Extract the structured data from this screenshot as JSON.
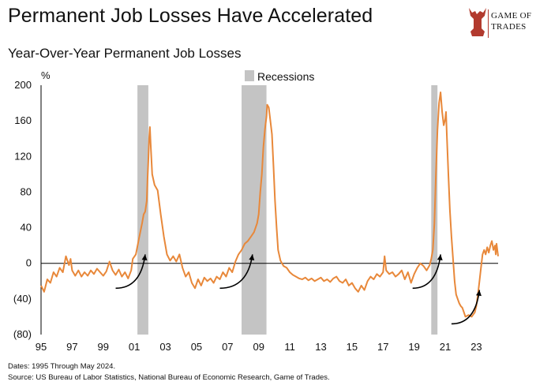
{
  "title": "Permanent Job Losses Have Accelerated",
  "subtitle": "Year-Over-Year Permanent Job Losses",
  "logo": {
    "line1": "GAME OF",
    "line2": "TRADES",
    "icon": "bull-icon"
  },
  "footer": {
    "dates": "Dates: 1995 Through May 2024.",
    "source": "Source: US Bureau of Labor Statistics, National Bureau of Economic Research, Game of Trades."
  },
  "colors": {
    "line": "#E8883A",
    "recession": "#C4C4C4",
    "zero_line": "#000000",
    "arrow": "#000000"
  },
  "chart_data": {
    "type": "line",
    "title": "Permanent Job Losses Have Accelerated",
    "subtitle": "Year-Over-Year Permanent Job Losses",
    "ylabel": "%",
    "ylim": [
      -80,
      200
    ],
    "xlim": [
      1995,
      2024.4
    ],
    "y_ticks": [
      -80,
      -40,
      0,
      40,
      80,
      120,
      160,
      200
    ],
    "y_tick_labels": [
      "(80)",
      "(40)",
      "0",
      "40",
      "80",
      "120",
      "160",
      "200"
    ],
    "x_ticks": [
      1995,
      1997,
      1999,
      2001,
      2003,
      2005,
      2007,
      2009,
      2011,
      2013,
      2015,
      2017,
      2019,
      2021,
      2023
    ],
    "x_tick_labels": [
      "95",
      "97",
      "99",
      "01",
      "03",
      "05",
      "07",
      "09",
      "11",
      "13",
      "15",
      "17",
      "19",
      "21",
      "23"
    ],
    "legend": {
      "label": "Recessions",
      "placement": "top-center"
    },
    "recessions": [
      {
        "start": 2001.2,
        "end": 2001.9
      },
      {
        "start": 2007.9,
        "end": 2009.5
      },
      {
        "start": 2020.1,
        "end": 2020.5
      }
    ],
    "series": [
      {
        "values": [
          [
            1995.0,
            -25
          ],
          [
            1995.2,
            -32
          ],
          [
            1995.4,
            -18
          ],
          [
            1995.6,
            -22
          ],
          [
            1995.8,
            -10
          ],
          [
            1996.0,
            -15
          ],
          [
            1996.2,
            -5
          ],
          [
            1996.4,
            -10
          ],
          [
            1996.6,
            8
          ],
          [
            1996.8,
            -2
          ],
          [
            1996.9,
            5
          ],
          [
            1997.0,
            -8
          ],
          [
            1997.2,
            -14
          ],
          [
            1997.4,
            -8
          ],
          [
            1997.6,
            -15
          ],
          [
            1997.8,
            -10
          ],
          [
            1998.0,
            -14
          ],
          [
            1998.2,
            -8
          ],
          [
            1998.4,
            -12
          ],
          [
            1998.6,
            -6
          ],
          [
            1998.8,
            -10
          ],
          [
            1999.0,
            -14
          ],
          [
            1999.2,
            -9
          ],
          [
            1999.4,
            2
          ],
          [
            1999.6,
            -8
          ],
          [
            1999.8,
            -13
          ],
          [
            2000.0,
            -7
          ],
          [
            2000.2,
            -15
          ],
          [
            2000.4,
            -10
          ],
          [
            2000.6,
            -17
          ],
          [
            2000.8,
            -8
          ],
          [
            2000.9,
            5
          ],
          [
            2001.1,
            10
          ],
          [
            2001.3,
            28
          ],
          [
            2001.5,
            45
          ],
          [
            2001.6,
            55
          ],
          [
            2001.7,
            58
          ],
          [
            2001.8,
            70
          ],
          [
            2001.85,
            95
          ],
          [
            2001.9,
            115
          ],
          [
            2001.95,
            140
          ],
          [
            2002.0,
            153
          ],
          [
            2002.05,
            135
          ],
          [
            2002.15,
            100
          ],
          [
            2002.3,
            88
          ],
          [
            2002.5,
            82
          ],
          [
            2002.7,
            55
          ],
          [
            2002.9,
            30
          ],
          [
            2003.1,
            10
          ],
          [
            2003.3,
            3
          ],
          [
            2003.5,
            8
          ],
          [
            2003.7,
            2
          ],
          [
            2003.9,
            10
          ],
          [
            2004.1,
            -5
          ],
          [
            2004.3,
            -15
          ],
          [
            2004.5,
            -10
          ],
          [
            2004.7,
            -22
          ],
          [
            2004.9,
            -28
          ],
          [
            2005.1,
            -18
          ],
          [
            2005.3,
            -25
          ],
          [
            2005.5,
            -16
          ],
          [
            2005.7,
            -20
          ],
          [
            2005.9,
            -17
          ],
          [
            2006.1,
            -22
          ],
          [
            2006.3,
            -15
          ],
          [
            2006.5,
            -18
          ],
          [
            2006.7,
            -10
          ],
          [
            2006.9,
            -15
          ],
          [
            2007.1,
            -5
          ],
          [
            2007.3,
            -10
          ],
          [
            2007.5,
            2
          ],
          [
            2007.7,
            10
          ],
          [
            2007.9,
            15
          ],
          [
            2008.1,
            22
          ],
          [
            2008.3,
            25
          ],
          [
            2008.5,
            30
          ],
          [
            2008.7,
            35
          ],
          [
            2008.9,
            45
          ],
          [
            2009.0,
            55
          ],
          [
            2009.1,
            80
          ],
          [
            2009.2,
            100
          ],
          [
            2009.3,
            130
          ],
          [
            2009.4,
            150
          ],
          [
            2009.5,
            165
          ],
          [
            2009.55,
            178
          ],
          [
            2009.65,
            175
          ],
          [
            2009.75,
            160
          ],
          [
            2009.85,
            145
          ],
          [
            2009.95,
            110
          ],
          [
            2010.05,
            70
          ],
          [
            2010.15,
            40
          ],
          [
            2010.25,
            15
          ],
          [
            2010.4,
            3
          ],
          [
            2010.6,
            -3
          ],
          [
            2010.8,
            -5
          ],
          [
            2011.0,
            -10
          ],
          [
            2011.2,
            -13
          ],
          [
            2011.4,
            -15
          ],
          [
            2011.6,
            -17
          ],
          [
            2011.8,
            -18
          ],
          [
            2012.0,
            -16
          ],
          [
            2012.2,
            -19
          ],
          [
            2012.4,
            -17
          ],
          [
            2012.6,
            -20
          ],
          [
            2012.8,
            -18
          ],
          [
            2013.0,
            -16
          ],
          [
            2013.2,
            -20
          ],
          [
            2013.4,
            -18
          ],
          [
            2013.6,
            -21
          ],
          [
            2013.8,
            -17
          ],
          [
            2014.0,
            -15
          ],
          [
            2014.2,
            -20
          ],
          [
            2014.4,
            -22
          ],
          [
            2014.6,
            -18
          ],
          [
            2014.8,
            -25
          ],
          [
            2015.0,
            -22
          ],
          [
            2015.2,
            -28
          ],
          [
            2015.4,
            -32
          ],
          [
            2015.6,
            -25
          ],
          [
            2015.8,
            -30
          ],
          [
            2016.0,
            -20
          ],
          [
            2016.2,
            -15
          ],
          [
            2016.4,
            -18
          ],
          [
            2016.6,
            -12
          ],
          [
            2016.8,
            -15
          ],
          [
            2017.0,
            -10
          ],
          [
            2017.1,
            8
          ],
          [
            2017.2,
            -8
          ],
          [
            2017.4,
            -12
          ],
          [
            2017.6,
            -10
          ],
          [
            2017.8,
            -15
          ],
          [
            2018.0,
            -12
          ],
          [
            2018.2,
            -8
          ],
          [
            2018.4,
            -18
          ],
          [
            2018.6,
            -10
          ],
          [
            2018.8,
            -22
          ],
          [
            2019.0,
            -12
          ],
          [
            2019.2,
            -5
          ],
          [
            2019.4,
            0
          ],
          [
            2019.6,
            -3
          ],
          [
            2019.8,
            -8
          ],
          [
            2020.0,
            -2
          ],
          [
            2020.1,
            5
          ],
          [
            2020.2,
            15
          ],
          [
            2020.3,
            45
          ],
          [
            2020.4,
            100
          ],
          [
            2020.5,
            150
          ],
          [
            2020.6,
            180
          ],
          [
            2020.7,
            192
          ],
          [
            2020.8,
            170
          ],
          [
            2020.9,
            155
          ],
          [
            2021.0,
            162
          ],
          [
            2021.05,
            170
          ],
          [
            2021.1,
            145
          ],
          [
            2021.2,
            100
          ],
          [
            2021.3,
            60
          ],
          [
            2021.4,
            30
          ],
          [
            2021.5,
            5
          ],
          [
            2021.6,
            -20
          ],
          [
            2021.7,
            -35
          ],
          [
            2021.8,
            -40
          ],
          [
            2021.9,
            -45
          ],
          [
            2022.0,
            -48
          ],
          [
            2022.1,
            -50
          ],
          [
            2022.2,
            -55
          ],
          [
            2022.3,
            -60
          ],
          [
            2022.5,
            -58
          ],
          [
            2022.7,
            -60
          ],
          [
            2022.9,
            -55
          ],
          [
            2023.0,
            -48
          ],
          [
            2023.1,
            -35
          ],
          [
            2023.2,
            -20
          ],
          [
            2023.3,
            -5
          ],
          [
            2023.4,
            10
          ],
          [
            2023.5,
            15
          ],
          [
            2023.6,
            10
          ],
          [
            2023.7,
            18
          ],
          [
            2023.8,
            12
          ],
          [
            2023.9,
            20
          ],
          [
            2024.0,
            25
          ],
          [
            2024.1,
            15
          ],
          [
            2024.2,
            20
          ],
          [
            2024.25,
            10
          ],
          [
            2024.3,
            22
          ],
          [
            2024.4,
            8
          ]
        ]
      }
    ],
    "arrows": [
      {
        "from": [
          1999.8,
          -28
        ],
        "to": [
          2001.7,
          10
        ]
      },
      {
        "from": [
          2006.5,
          -28
        ],
        "to": [
          2008.6,
          10
        ]
      },
      {
        "from": [
          2018.9,
          -28
        ],
        "to": [
          2020.7,
          10
        ]
      },
      {
        "from": [
          2021.4,
          -68
        ],
        "to": [
          2023.2,
          -30
        ]
      }
    ]
  }
}
